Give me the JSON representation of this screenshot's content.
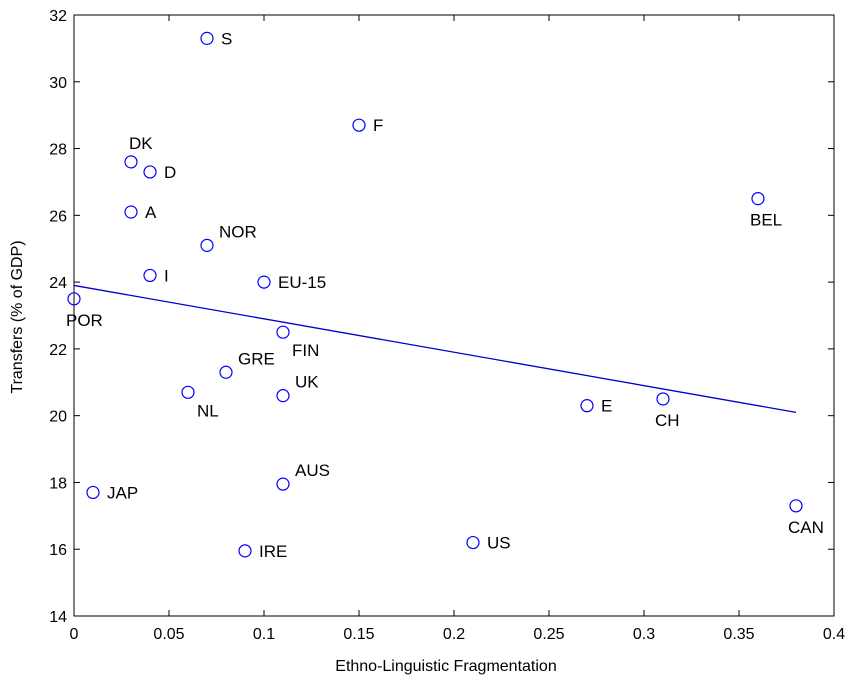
{
  "chart_data": {
    "type": "scatter",
    "title": "",
    "xlabel": "Ethno-Linguistic Fragmentation",
    "ylabel": "Transfers (% of GDP)",
    "xlim": [
      0,
      0.4
    ],
    "ylim": [
      14,
      32
    ],
    "xticks": [
      0,
      0.05,
      0.1,
      0.15,
      0.2,
      0.25,
      0.3,
      0.35,
      0.4
    ],
    "xtick_labels": [
      "0",
      "0.05",
      "0.1",
      "0.15",
      "0.2",
      "0.25",
      "0.3",
      "0.35",
      "0.4"
    ],
    "yticks": [
      14,
      16,
      18,
      20,
      22,
      24,
      26,
      28,
      30,
      32
    ],
    "ytick_labels": [
      "14",
      "16",
      "18",
      "20",
      "22",
      "24",
      "26",
      "28",
      "30",
      "32"
    ],
    "grid": false,
    "marker_color": "#0000ff",
    "line_color": "#0000cc",
    "points": [
      {
        "label": "S",
        "x": 0.07,
        "y": 31.3,
        "pos": "right"
      },
      {
        "label": "F",
        "x": 0.15,
        "y": 28.7,
        "pos": "right"
      },
      {
        "label": "DK",
        "x": 0.03,
        "y": 27.6,
        "pos": "above"
      },
      {
        "label": "D",
        "x": 0.04,
        "y": 27.3,
        "pos": "right"
      },
      {
        "label": "BEL",
        "x": 0.36,
        "y": 26.5,
        "pos": "below"
      },
      {
        "label": "A",
        "x": 0.03,
        "y": 26.1,
        "pos": "right"
      },
      {
        "label": "NOR",
        "x": 0.07,
        "y": 25.1,
        "pos": "upper-right"
      },
      {
        "label": "I",
        "x": 0.04,
        "y": 24.2,
        "pos": "right"
      },
      {
        "label": "EU-15",
        "x": 0.1,
        "y": 24.0,
        "pos": "right"
      },
      {
        "label": "POR",
        "x": 0.0,
        "y": 23.5,
        "pos": "below"
      },
      {
        "label": "FIN",
        "x": 0.11,
        "y": 22.5,
        "pos": "lower-right"
      },
      {
        "label": "GRE",
        "x": 0.08,
        "y": 21.3,
        "pos": "upper-right"
      },
      {
        "label": "NL",
        "x": 0.06,
        "y": 20.7,
        "pos": "lower-right"
      },
      {
        "label": "UK",
        "x": 0.11,
        "y": 20.6,
        "pos": "upper-right"
      },
      {
        "label": "E",
        "x": 0.27,
        "y": 20.3,
        "pos": "right"
      },
      {
        "label": "CH",
        "x": 0.31,
        "y": 20.5,
        "pos": "below"
      },
      {
        "label": "AUS",
        "x": 0.11,
        "y": 17.95,
        "pos": "upper-right"
      },
      {
        "label": "JAP",
        "x": 0.01,
        "y": 17.7,
        "pos": "right"
      },
      {
        "label": "CAN",
        "x": 0.38,
        "y": 17.3,
        "pos": "below"
      },
      {
        "label": "US",
        "x": 0.21,
        "y": 16.2,
        "pos": "right"
      },
      {
        "label": "IRE",
        "x": 0.09,
        "y": 15.95,
        "pos": "right"
      }
    ],
    "fit_line": {
      "x": [
        0,
        0.38
      ],
      "y": [
        23.9,
        20.1
      ]
    }
  }
}
